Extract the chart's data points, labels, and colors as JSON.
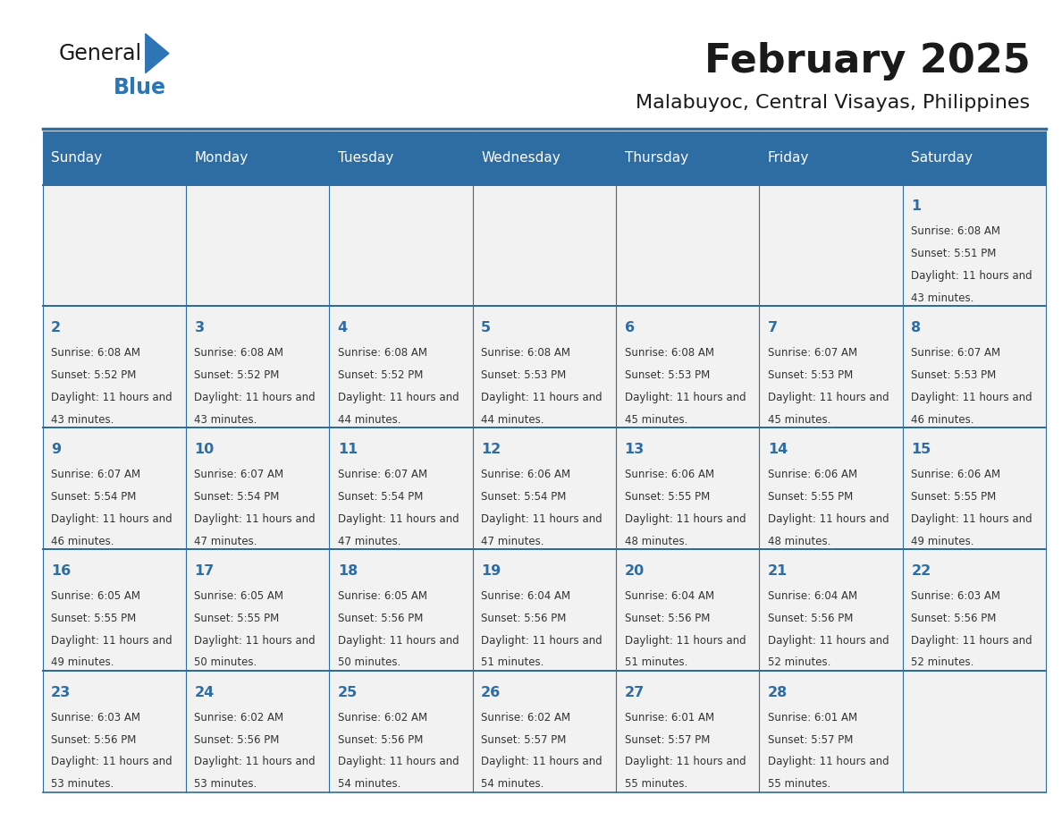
{
  "title": "February 2025",
  "subtitle": "Malabuyoc, Central Visayas, Philippines",
  "header_color": "#2E6DA4",
  "header_text_color": "#FFFFFF",
  "cell_bg_color": "#F2F2F2",
  "border_color": "#2E6DA4",
  "days_of_week": [
    "Sunday",
    "Monday",
    "Tuesday",
    "Wednesday",
    "Thursday",
    "Friday",
    "Saturday"
  ],
  "title_color": "#1a1a1a",
  "subtitle_color": "#1a1a1a",
  "cell_text_color": "#333333",
  "day_num_color": "#2E6DA4",
  "calendar_data": [
    [
      null,
      null,
      null,
      null,
      null,
      null,
      {
        "day": 1,
        "sunrise": "6:08 AM",
        "sunset": "5:51 PM",
        "daylight": "11 hours and 43 minutes."
      }
    ],
    [
      {
        "day": 2,
        "sunrise": "6:08 AM",
        "sunset": "5:52 PM",
        "daylight": "11 hours and 43 minutes."
      },
      {
        "day": 3,
        "sunrise": "6:08 AM",
        "sunset": "5:52 PM",
        "daylight": "11 hours and 43 minutes."
      },
      {
        "day": 4,
        "sunrise": "6:08 AM",
        "sunset": "5:52 PM",
        "daylight": "11 hours and 44 minutes."
      },
      {
        "day": 5,
        "sunrise": "6:08 AM",
        "sunset": "5:53 PM",
        "daylight": "11 hours and 44 minutes."
      },
      {
        "day": 6,
        "sunrise": "6:08 AM",
        "sunset": "5:53 PM",
        "daylight": "11 hours and 45 minutes."
      },
      {
        "day": 7,
        "sunrise": "6:07 AM",
        "sunset": "5:53 PM",
        "daylight": "11 hours and 45 minutes."
      },
      {
        "day": 8,
        "sunrise": "6:07 AM",
        "sunset": "5:53 PM",
        "daylight": "11 hours and 46 minutes."
      }
    ],
    [
      {
        "day": 9,
        "sunrise": "6:07 AM",
        "sunset": "5:54 PM",
        "daylight": "11 hours and 46 minutes."
      },
      {
        "day": 10,
        "sunrise": "6:07 AM",
        "sunset": "5:54 PM",
        "daylight": "11 hours and 47 minutes."
      },
      {
        "day": 11,
        "sunrise": "6:07 AM",
        "sunset": "5:54 PM",
        "daylight": "11 hours and 47 minutes."
      },
      {
        "day": 12,
        "sunrise": "6:06 AM",
        "sunset": "5:54 PM",
        "daylight": "11 hours and 47 minutes."
      },
      {
        "day": 13,
        "sunrise": "6:06 AM",
        "sunset": "5:55 PM",
        "daylight": "11 hours and 48 minutes."
      },
      {
        "day": 14,
        "sunrise": "6:06 AM",
        "sunset": "5:55 PM",
        "daylight": "11 hours and 48 minutes."
      },
      {
        "day": 15,
        "sunrise": "6:06 AM",
        "sunset": "5:55 PM",
        "daylight": "11 hours and 49 minutes."
      }
    ],
    [
      {
        "day": 16,
        "sunrise": "6:05 AM",
        "sunset": "5:55 PM",
        "daylight": "11 hours and 49 minutes."
      },
      {
        "day": 17,
        "sunrise": "6:05 AM",
        "sunset": "5:55 PM",
        "daylight": "11 hours and 50 minutes."
      },
      {
        "day": 18,
        "sunrise": "6:05 AM",
        "sunset": "5:56 PM",
        "daylight": "11 hours and 50 minutes."
      },
      {
        "day": 19,
        "sunrise": "6:04 AM",
        "sunset": "5:56 PM",
        "daylight": "11 hours and 51 minutes."
      },
      {
        "day": 20,
        "sunrise": "6:04 AM",
        "sunset": "5:56 PM",
        "daylight": "11 hours and 51 minutes."
      },
      {
        "day": 21,
        "sunrise": "6:04 AM",
        "sunset": "5:56 PM",
        "daylight": "11 hours and 52 minutes."
      },
      {
        "day": 22,
        "sunrise": "6:03 AM",
        "sunset": "5:56 PM",
        "daylight": "11 hours and 52 minutes."
      }
    ],
    [
      {
        "day": 23,
        "sunrise": "6:03 AM",
        "sunset": "5:56 PM",
        "daylight": "11 hours and 53 minutes."
      },
      {
        "day": 24,
        "sunrise": "6:02 AM",
        "sunset": "5:56 PM",
        "daylight": "11 hours and 53 minutes."
      },
      {
        "day": 25,
        "sunrise": "6:02 AM",
        "sunset": "5:56 PM",
        "daylight": "11 hours and 54 minutes."
      },
      {
        "day": 26,
        "sunrise": "6:02 AM",
        "sunset": "5:57 PM",
        "daylight": "11 hours and 54 minutes."
      },
      {
        "day": 27,
        "sunrise": "6:01 AM",
        "sunset": "5:57 PM",
        "daylight": "11 hours and 55 minutes."
      },
      {
        "day": 28,
        "sunrise": "6:01 AM",
        "sunset": "5:57 PM",
        "daylight": "11 hours and 55 minutes."
      },
      null
    ]
  ],
  "logo_text_general": "General",
  "logo_text_blue": "Blue",
  "logo_color_general": "#1a1a1a",
  "logo_color_blue": "#2E75B6",
  "logo_triangle_color": "#2E75B6"
}
